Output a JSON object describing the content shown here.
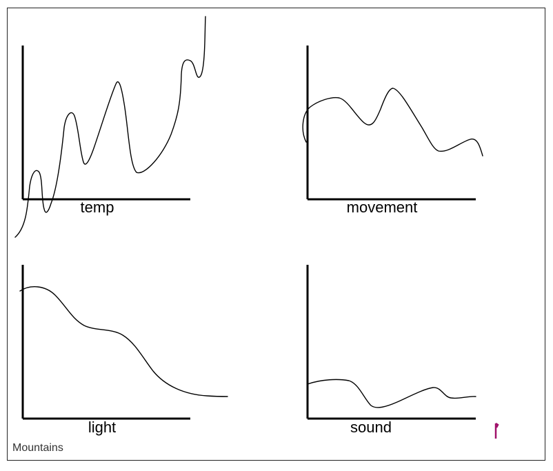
{
  "canvas": {
    "caption": "Mountains",
    "marker_color": "#a0106a"
  },
  "panels": [
    {
      "id": "temp",
      "label": "temp"
    },
    {
      "id": "movement",
      "label": "movement"
    },
    {
      "id": "light",
      "label": "light"
    },
    {
      "id": "sound",
      "label": "sound"
    }
  ]
}
